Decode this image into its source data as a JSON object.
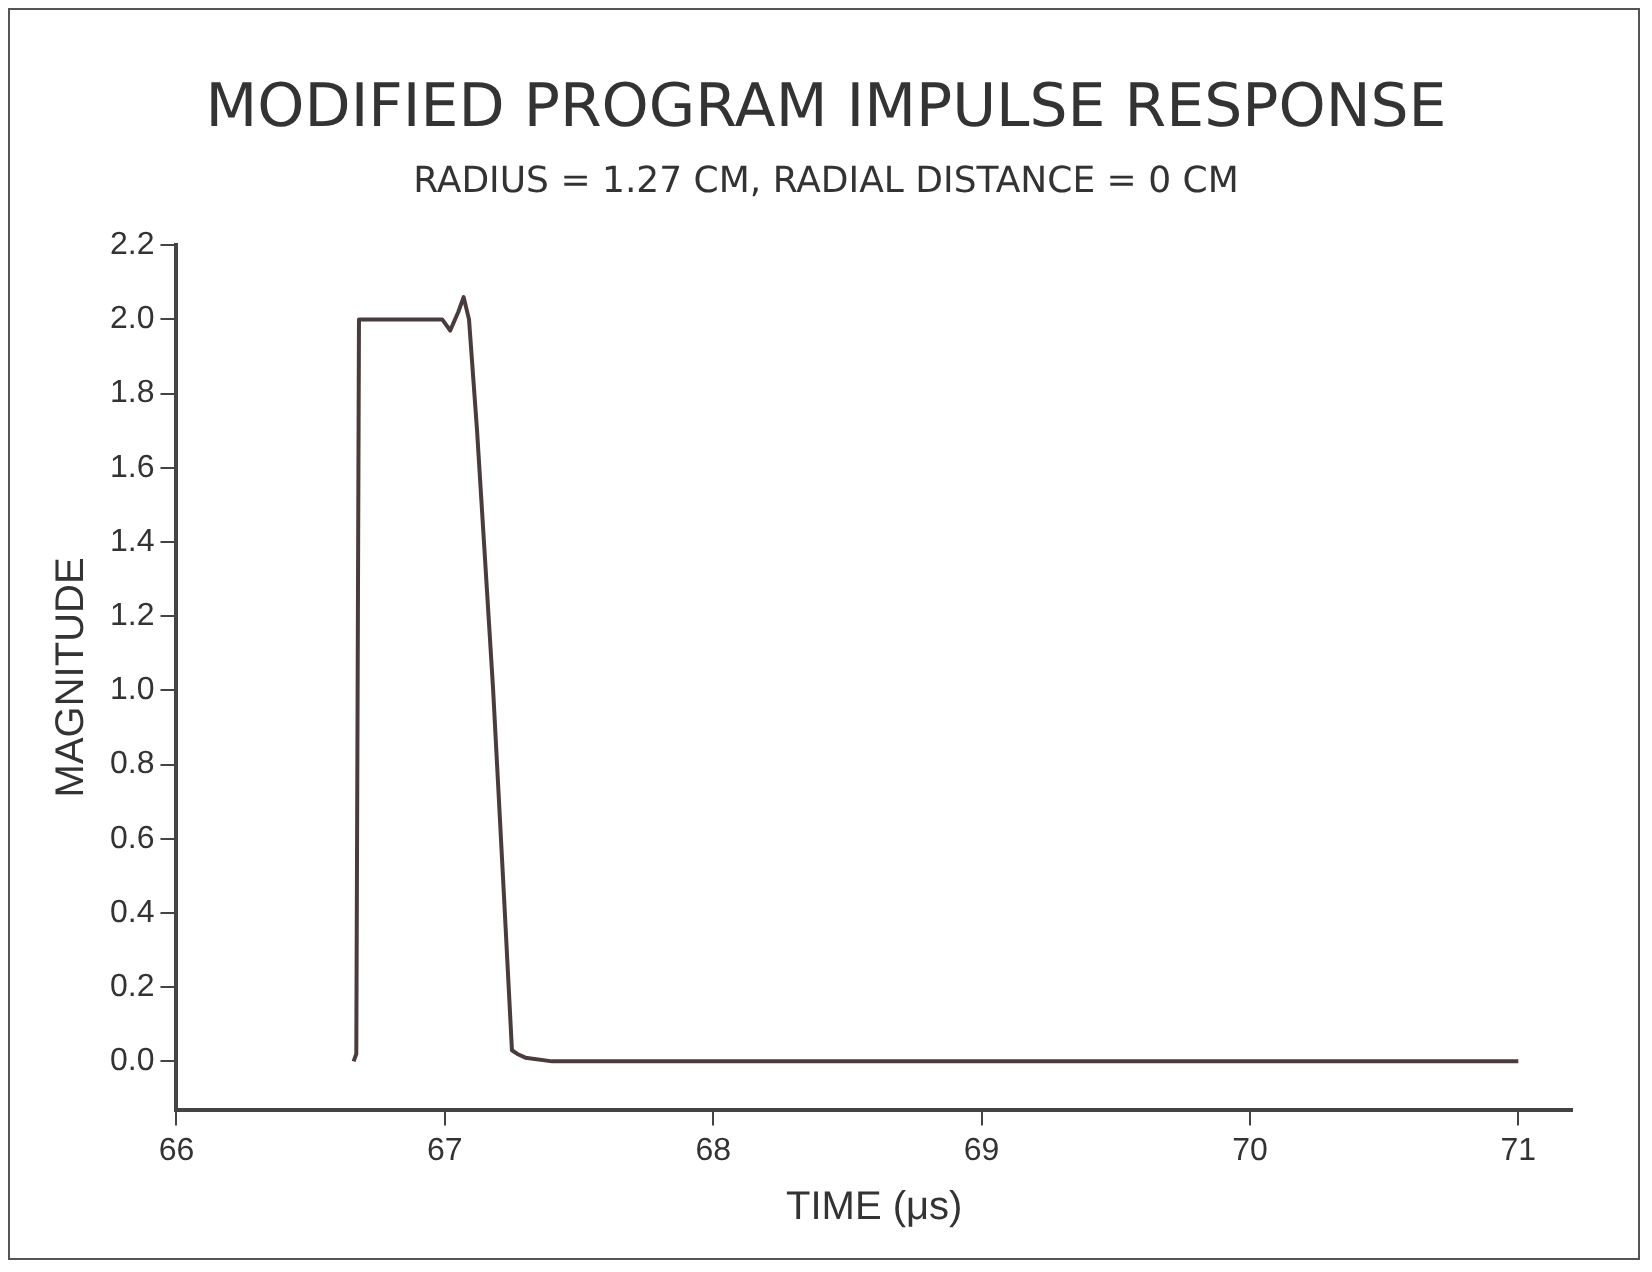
{
  "chart_data": {
    "type": "line",
    "title": "MODIFIED PROGRAM IMPULSE RESPONSE",
    "subtitle": "RADIUS = 1.27 CM, RADIAL DISTANCE = 0 CM",
    "xlabel": "TIME (μs)",
    "ylabel": "MAGNITUDE",
    "series": [
      {
        "color": "#4a3c3c",
        "x": [
          66.66,
          66.67,
          66.68,
          66.8,
          66.95,
          66.99,
          67.02,
          67.05,
          67.07,
          67.09,
          67.12,
          67.18,
          67.22,
          67.25,
          67.27,
          67.3,
          67.4,
          67.6,
          68,
          71
        ],
        "values": [
          0,
          0.02,
          2.0,
          2.0,
          2.0,
          2.0,
          1.97,
          2.02,
          2.06,
          2.0,
          1.7,
          1.0,
          0.45,
          0.03,
          0.02,
          0.01,
          0.0,
          0.0,
          0.0,
          0.0
        ]
      }
    ],
    "xlim": [
      66,
      71.2
    ],
    "xticks": [
      66,
      67,
      68,
      69,
      70,
      71
    ],
    "ylim": [
      -0.13,
      2.2
    ],
    "yticks": [
      {
        "value": 0,
        "label": "0.0"
      },
      {
        "value": 0.2,
        "label": "0.2"
      },
      {
        "value": 0.4,
        "label": "0.4"
      },
      {
        "value": 0.6,
        "label": "0.6"
      },
      {
        "value": 0.8,
        "label": "0.8"
      },
      {
        "value": 1,
        "label": "1.0"
      },
      {
        "value": 1.2,
        "label": "1.2"
      },
      {
        "value": 1.4,
        "label": "1.4"
      },
      {
        "value": 1.6,
        "label": "1.6"
      },
      {
        "value": 1.8,
        "label": "1.8"
      },
      {
        "value": 2,
        "label": "2.0"
      },
      {
        "value": 2.2,
        "label": "2.2"
      }
    ],
    "grid": false,
    "legend": false,
    "marker": "none",
    "line_style": "solid"
  }
}
